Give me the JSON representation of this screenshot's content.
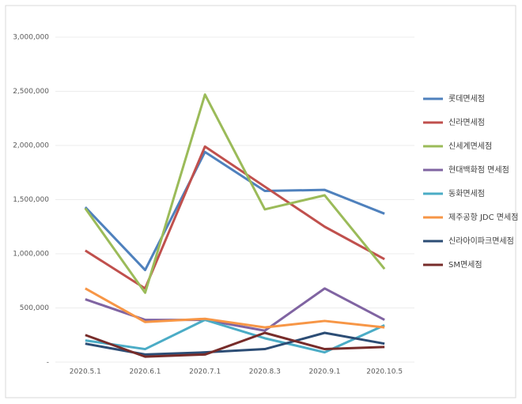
{
  "chart_data": {
    "type": "line",
    "categories": [
      "2020.5.1",
      "2020.6.1",
      "2020.7.1",
      "2020.8.3",
      "2020.9.1",
      "2020.10.5"
    ],
    "series": [
      {
        "name": "롯데면세점",
        "color": "#4f81bd",
        "values": [
          1430000,
          850000,
          1940000,
          1580000,
          1590000,
          1370000
        ]
      },
      {
        "name": "신라면세점",
        "color": "#c0504d",
        "values": [
          1030000,
          680000,
          1990000,
          1620000,
          1250000,
          950000
        ]
      },
      {
        "name": "신세계면세점",
        "color": "#9bbb59",
        "values": [
          1420000,
          640000,
          2470000,
          1410000,
          1540000,
          860000
        ]
      },
      {
        "name": "현대백화점 면세점",
        "color": "#8064a2",
        "values": [
          580000,
          390000,
          390000,
          290000,
          680000,
          390000
        ]
      },
      {
        "name": "동화면세점",
        "color": "#4bacc6",
        "values": [
          200000,
          120000,
          390000,
          220000,
          90000,
          340000
        ]
      },
      {
        "name": "제주공항 JDC 면세점",
        "color": "#f79646",
        "values": [
          680000,
          370000,
          400000,
          320000,
          380000,
          320000
        ]
      },
      {
        "name": "신라아이파크면세점",
        "color": "#2c4d75",
        "values": [
          170000,
          70000,
          90000,
          120000,
          270000,
          170000
        ]
      },
      {
        "name": "SM면세점",
        "color": "#772c2a",
        "values": [
          250000,
          50000,
          70000,
          270000,
          120000,
          140000
        ]
      }
    ],
    "ylim": [
      0,
      3000000
    ],
    "yticks": [
      {
        "value": 0,
        "label": "-"
      },
      {
        "value": 500000,
        "label": "500,000"
      },
      {
        "value": 1000000,
        "label": "1,000,000"
      },
      {
        "value": 1500000,
        "label": "1,500,000"
      },
      {
        "value": 2000000,
        "label": "2,000,000"
      },
      {
        "value": 2500000,
        "label": "2,500,000"
      },
      {
        "value": 3000000,
        "label": "3,000,000"
      }
    ],
    "grid": true
  }
}
